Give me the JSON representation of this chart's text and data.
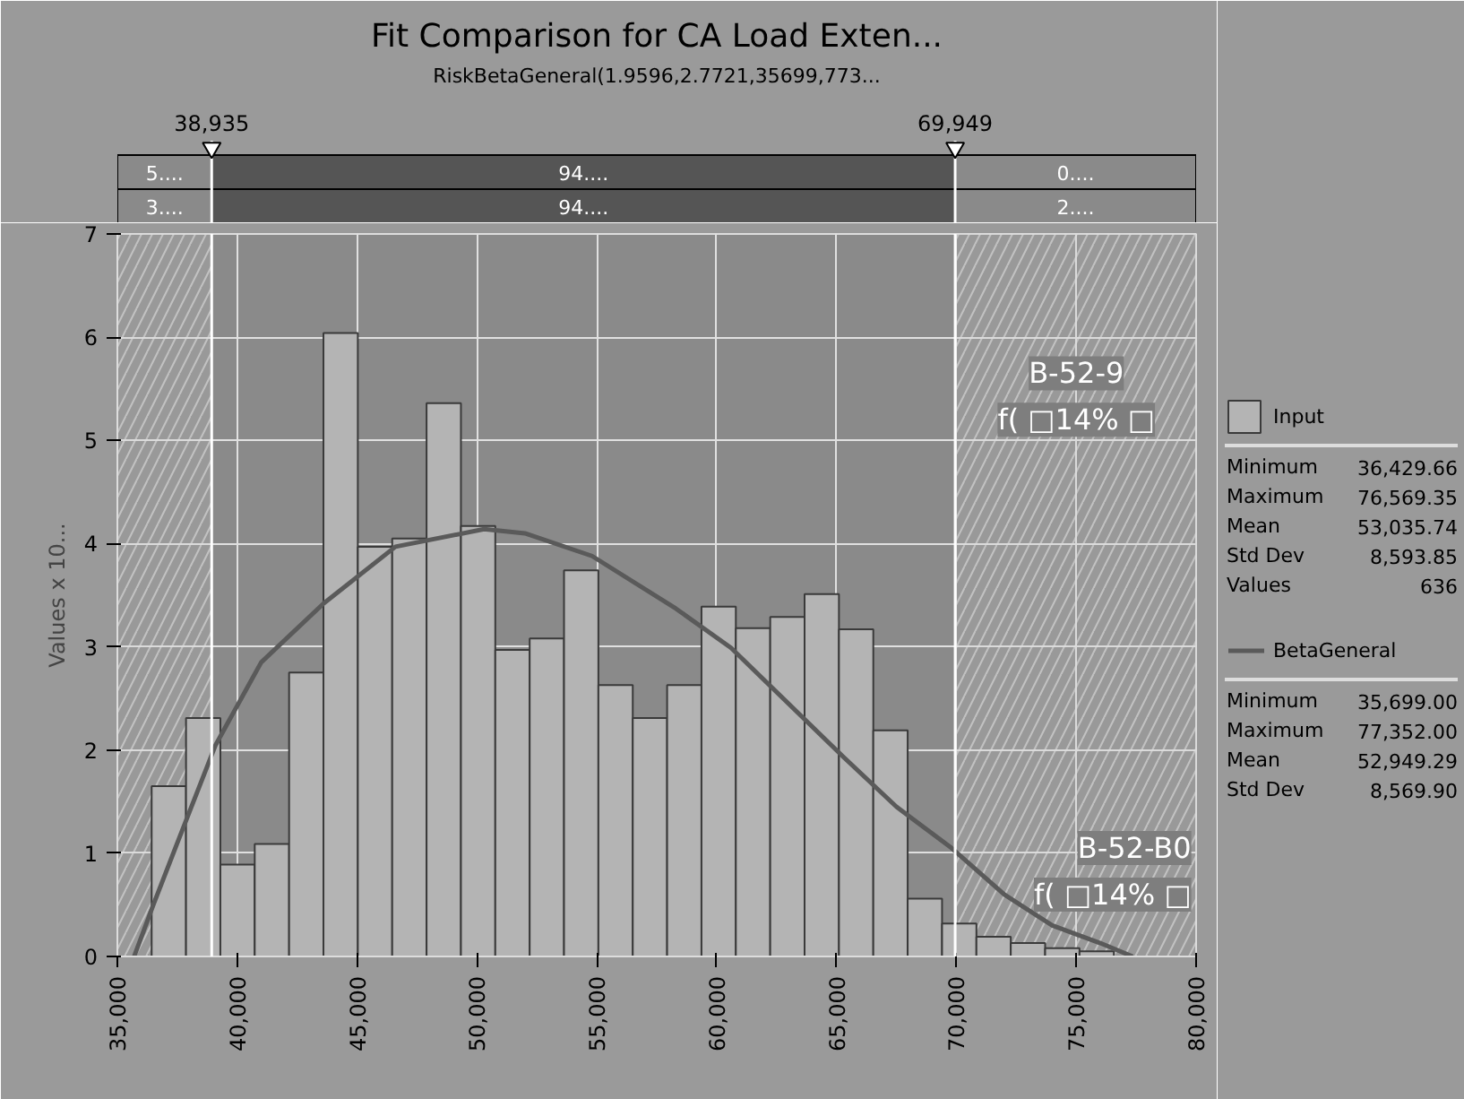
{
  "chart_data": {
    "type": "histogram",
    "title": "Fit Comparison for CA Load Exten...",
    "subtitle": "RiskBetaGeneral(1.9596,2.7721,35699,773...",
    "ylabel": "Values x 10...",
    "xlim": [
      35000,
      80000
    ],
    "xticks": [
      {
        "value": 35000,
        "label": "35,000"
      },
      {
        "value": 40000,
        "label": "40,000"
      },
      {
        "value": 45000,
        "label": "45,000"
      },
      {
        "value": 50000,
        "label": "50,000"
      },
      {
        "value": 55000,
        "label": "55,000"
      },
      {
        "value": 60000,
        "label": "60,000"
      },
      {
        "value": 65000,
        "label": "65,000"
      },
      {
        "value": 70000,
        "label": "70,000"
      },
      {
        "value": 75000,
        "label": "75,000"
      },
      {
        "value": 80000,
        "label": "80,000"
      }
    ],
    "ylim": [
      0,
      7
    ],
    "yticks": [
      0,
      1,
      2,
      3,
      4,
      5,
      6,
      7
    ],
    "grid": true,
    "legend": "right",
    "series": [
      {
        "name": "Input",
        "color": "#b4b4b4",
        "bins": [
          36430,
          37864,
          39297,
          40730,
          42164,
          43597,
          45031,
          46465,
          47898,
          49332,
          50765,
          52199,
          53632,
          55066,
          56500,
          57933,
          59367,
          60800,
          62234,
          63667,
          65101,
          66534,
          67968,
          69402,
          70835,
          72269,
          73702,
          75136,
          76569
        ],
        "values": [
          1.65,
          2.31,
          0.89,
          1.09,
          2.75,
          6.04,
          3.97,
          4.05,
          5.36,
          4.17,
          2.97,
          3.08,
          3.74,
          2.63,
          2.31,
          2.63,
          3.39,
          3.18,
          3.29,
          3.51,
          3.17,
          2.19,
          0.56,
          0.32,
          0.19,
          0.13,
          0.08,
          0.05
        ]
      },
      {
        "name": "BetaGeneral",
        "type": "line",
        "color": "#5a5a5a",
        "x": [
          35699,
          36500,
          37500,
          39100,
          41000,
          43600,
          46600,
          50300,
          52000,
          54800,
          58300,
          60600,
          65300,
          67500,
          69800,
          72000,
          74000,
          76000,
          77352
        ],
        "values": [
          0,
          0.5,
          1.1,
          2.05,
          2.85,
          3.42,
          3.97,
          4.14,
          4.1,
          3.88,
          3.37,
          2.99,
          1.93,
          1.45,
          1.05,
          0.6,
          0.3,
          0.13,
          0
        ]
      }
    ],
    "ref_lines": [
      {
        "axis": "x",
        "value": 38935,
        "label": "38,935",
        "color": "#ffffff"
      },
      {
        "axis": "x",
        "value": 69949,
        "label": "69,949",
        "color": "#ffffff"
      }
    ],
    "bands": [
      {
        "axis": "x",
        "from": 35000,
        "to": 38935,
        "color": "#c8c8c8"
      },
      {
        "axis": "x",
        "from": 69949,
        "to": 80000,
        "color": "#c8c8c8"
      }
    ],
    "annotations": [
      "5....",
      "94....",
      "0....",
      "3....",
      "94....",
      "2....",
      "B-52-9",
      "f( □14% □",
      "B-52-B0",
      "f( □14% □",
      "Minimum 36,429.66",
      "Maximum 76,569.35",
      "Mean 53,035.74",
      "Std Dev 8,593.85",
      "Values 636",
      "Minimum 35,699.00",
      "Maximum 77,352.00",
      "Mean 52,949.29",
      "Std Dev 8,569.90"
    ]
  }
}
